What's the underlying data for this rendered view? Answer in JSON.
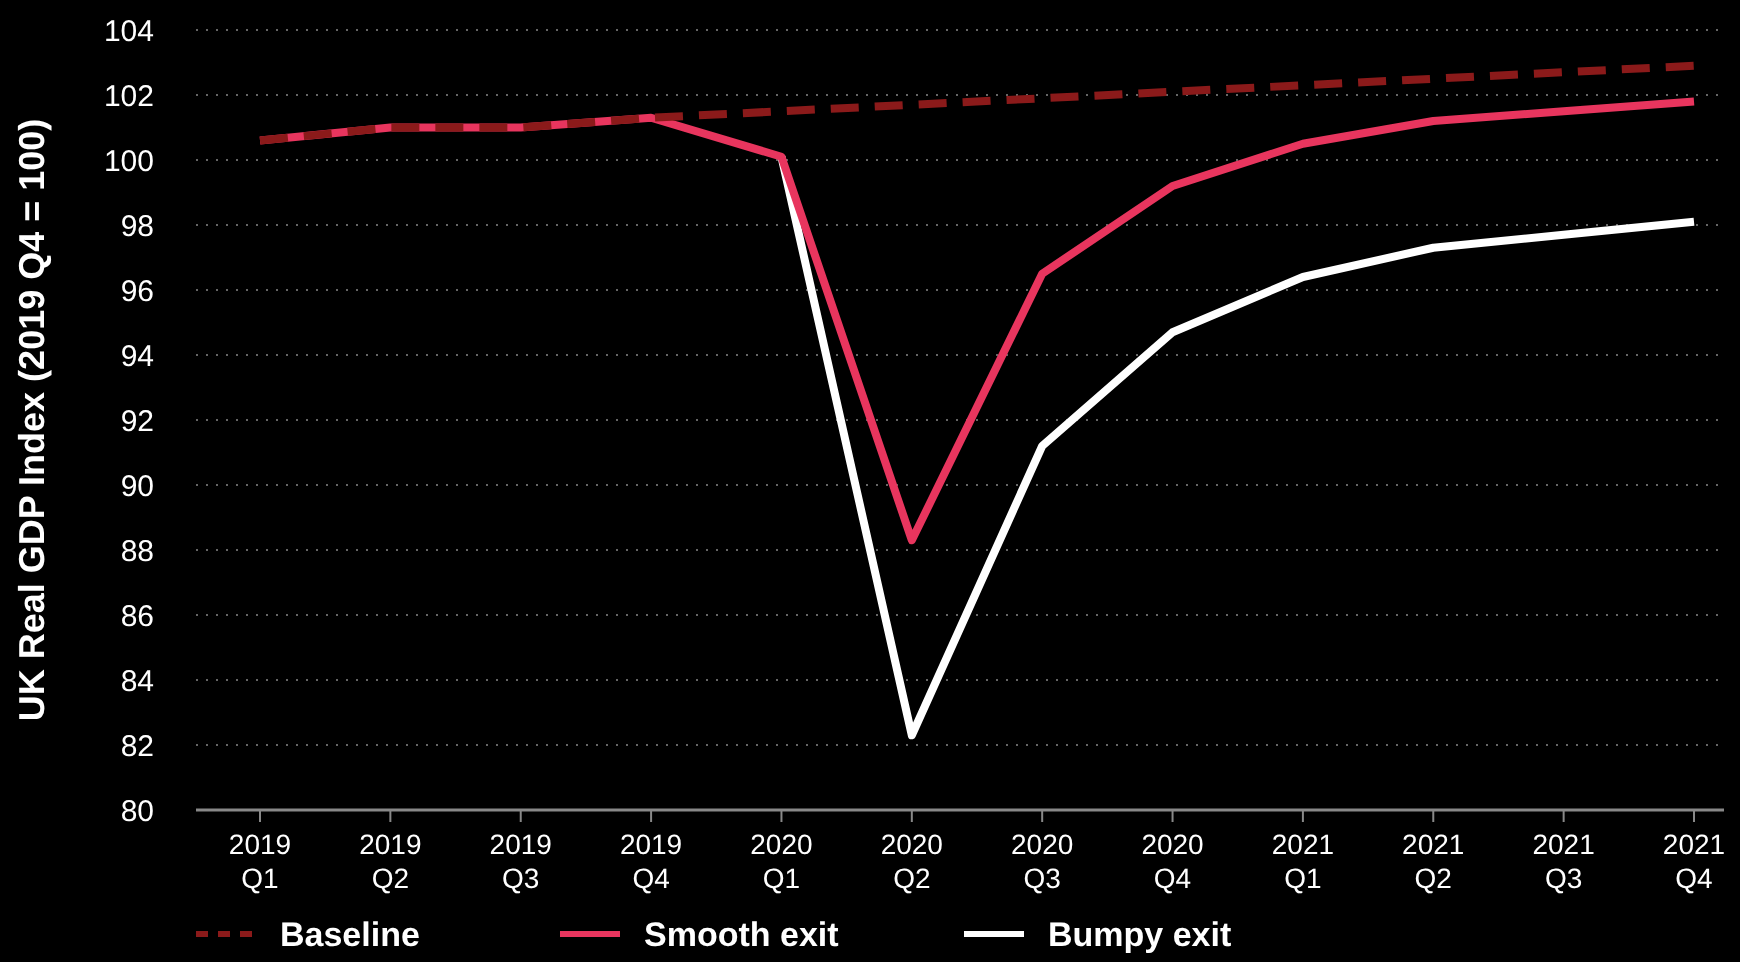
{
  "chart_data": {
    "type": "line",
    "ylabel": "UK Real GDP Index (2019 Q4 = 100)",
    "categories": [
      "2019 Q1",
      "2019 Q2",
      "2019 Q3",
      "2019 Q4",
      "2020 Q1",
      "2020 Q2",
      "2020 Q3",
      "2020 Q4",
      "2021 Q1",
      "2021 Q2",
      "2021 Q3",
      "2021 Q4"
    ],
    "series": [
      {
        "name": "Baseline",
        "color": "#8b1a1a",
        "line_style": "dashed",
        "values": [
          100.6,
          101.0,
          101.0,
          101.3,
          101.5,
          101.7,
          101.9,
          102.1,
          102.3,
          102.5,
          102.7,
          102.9
        ]
      },
      {
        "name": "Smooth exit",
        "color": "#e8355e",
        "line_style": "solid",
        "values": [
          100.6,
          101.0,
          101.0,
          101.3,
          100.1,
          88.3,
          96.5,
          99.2,
          100.5,
          101.2,
          101.5,
          101.8
        ]
      },
      {
        "name": "Bumpy exit",
        "color": "#ffffff",
        "line_style": "solid",
        "values": [
          null,
          null,
          null,
          null,
          100.1,
          82.3,
          91.2,
          94.7,
          96.4,
          97.3,
          97.7,
          98.1
        ]
      }
    ],
    "ylim": [
      80,
      104
    ],
    "yticks": [
      80,
      82,
      84,
      86,
      88,
      90,
      92,
      94,
      96,
      98,
      100,
      102,
      104
    ],
    "grid": "y",
    "legend": "bottom",
    "marker": "none"
  }
}
